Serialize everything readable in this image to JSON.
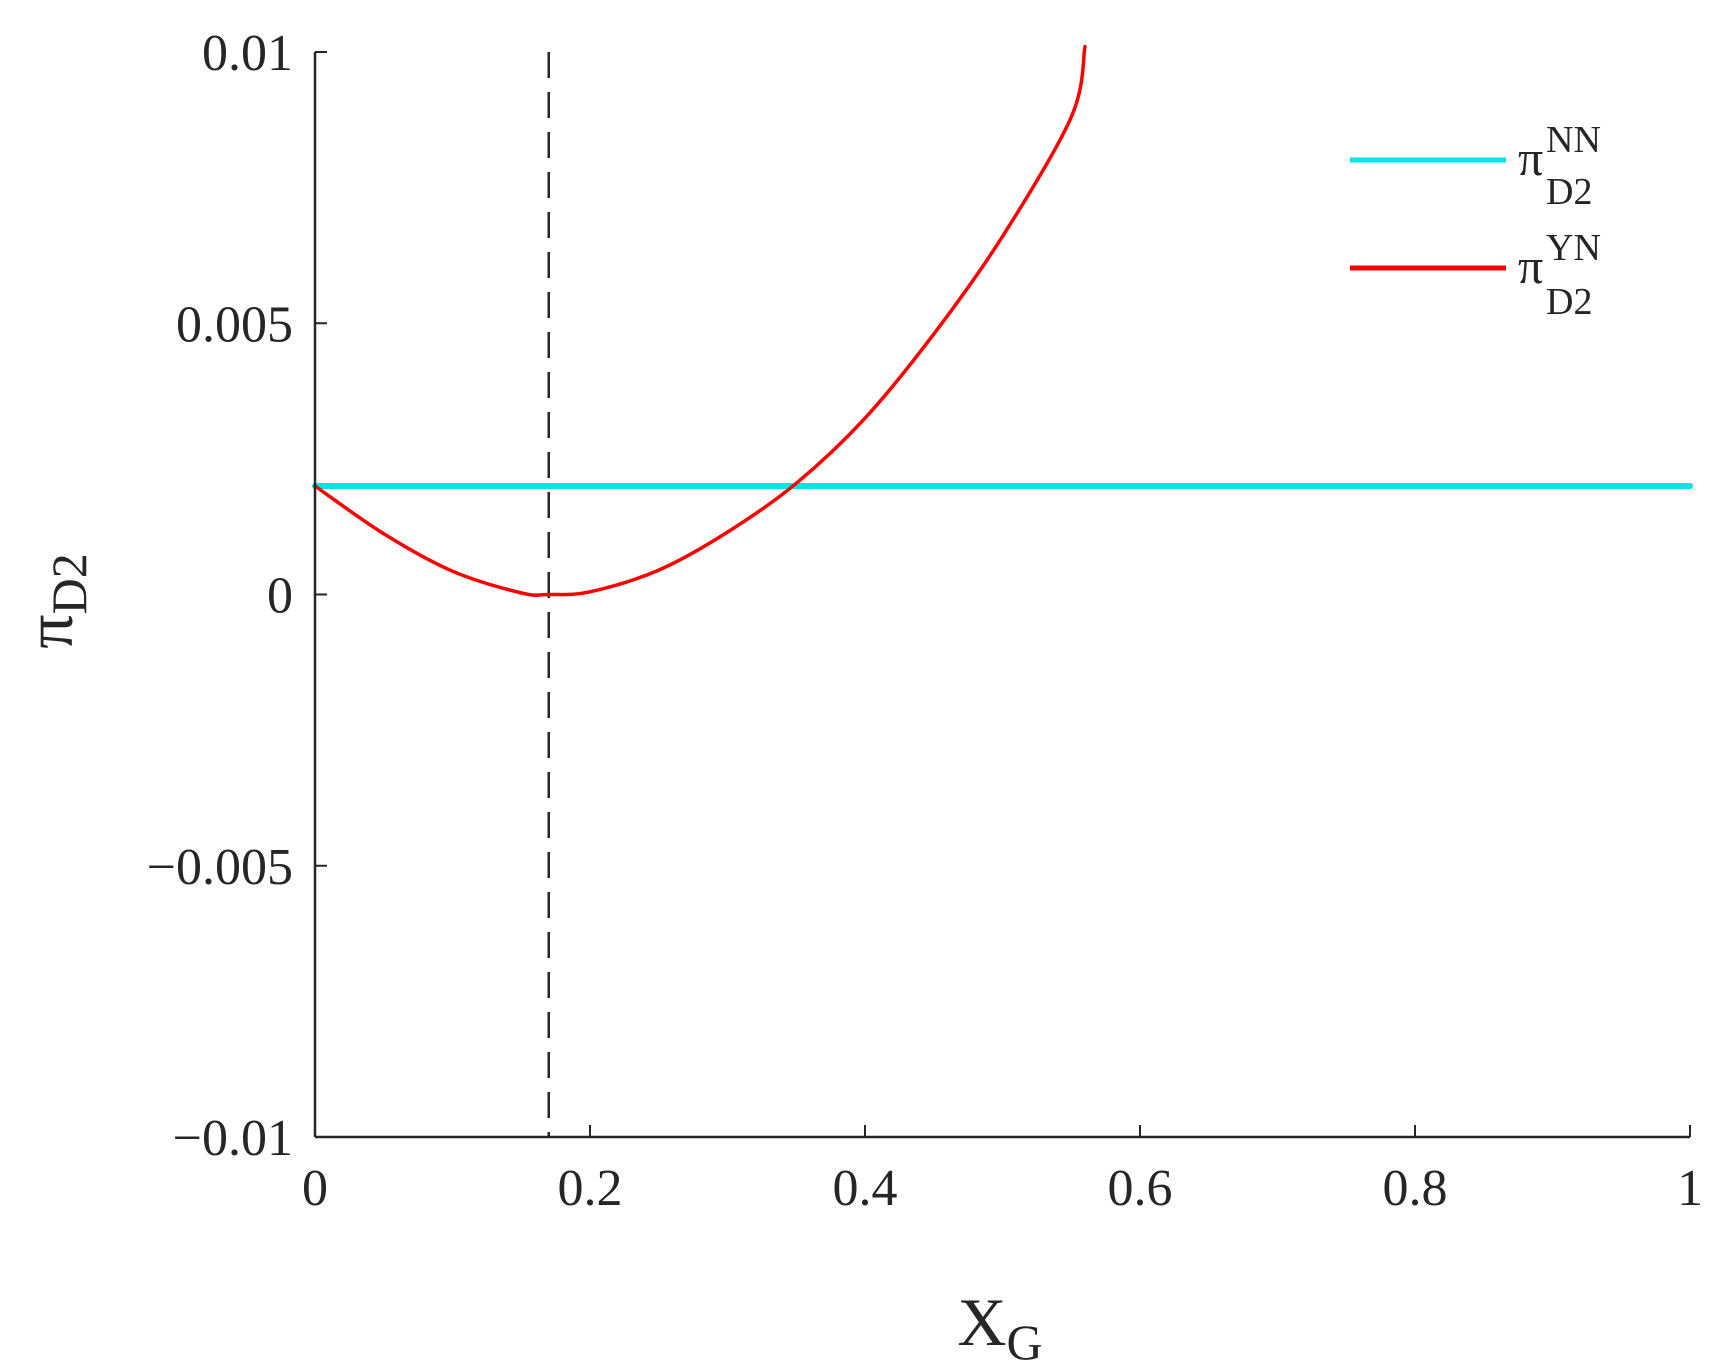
{
  "chart_data": {
    "type": "line",
    "xlabel": {
      "main": "X",
      "sub": "G"
    },
    "ylabel": {
      "main": "π",
      "sub": "D2"
    },
    "xlim": [
      0,
      1
    ],
    "ylim": [
      -0.01,
      0.01
    ],
    "x_ticks": [
      0,
      0.2,
      0.4,
      0.6,
      0.8,
      1
    ],
    "x_tick_labels": [
      "0",
      "0.2",
      "0.4",
      "0.6",
      "0.8",
      "1"
    ],
    "y_ticks": [
      -0.01,
      -0.005,
      0,
      0.005,
      0.01
    ],
    "y_tick_labels": [
      "−0.01",
      "−0.005",
      "0",
      "0.005",
      "0.01"
    ],
    "grid": false,
    "legend_position": "top-right",
    "series": [
      {
        "name": {
          "main": "π",
          "sub": "D2",
          "sup": "NN"
        },
        "color": "#00e5e5",
        "style": "solid",
        "x": [
          0,
          1
        ],
        "y": [
          0.002,
          0.002
        ]
      },
      {
        "name": {
          "main": "π",
          "sub": "D2",
          "sup": "YN"
        },
        "color": "#ff0000",
        "style": "solid",
        "x": [
          0,
          0.05,
          0.1,
          0.15,
          0.17,
          0.2,
          0.25,
          0.3,
          0.35,
          0.4,
          0.45,
          0.5,
          0.55,
          0.56
        ],
        "y": [
          0.002,
          0.00112,
          0.00043,
          3e-05,
          0,
          5e-05,
          0.00045,
          0.00115,
          0.00205,
          0.00325,
          0.0048,
          0.0066,
          0.0088,
          0.0101
        ]
      }
    ],
    "reference_lines": [
      {
        "type": "vertical",
        "x": 0.17,
        "color": "#262626",
        "style": "dashed"
      }
    ]
  }
}
